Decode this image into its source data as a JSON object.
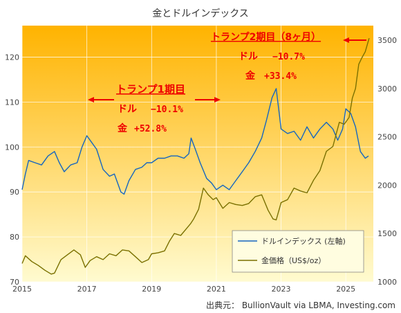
{
  "chart_data": {
    "type": "line",
    "title": "金とドルインデックス",
    "source": "出典元： BullionVault via LBMA, Investing.com",
    "xlim": [
      2015,
      2025.85
    ],
    "x_ticks": [
      "2015",
      "2017",
      "2019",
      "2021",
      "2023",
      "2025"
    ],
    "y_left": {
      "lim": [
        70,
        127
      ],
      "ticks": [
        "70",
        "80",
        "90",
        "100",
        "110",
        "120"
      ]
    },
    "y_right": {
      "lim": [
        1000,
        3650
      ],
      "ticks": [
        "1000",
        "1500",
        "2000",
        "2500",
        "3000",
        "3500"
      ]
    },
    "colors": {
      "dollar": "#1565c0",
      "gold": "#7a7000",
      "annotation": "#ee0000",
      "bg_top": "#ffb300",
      "bg_bottom": "#fffbd0"
    },
    "series": [
      {
        "name": "ドルインデックス (左軸)",
        "axis": "left",
        "x": [
          2015.0,
          2015.1,
          2015.2,
          2015.4,
          2015.6,
          2015.8,
          2016.0,
          2016.15,
          2016.3,
          2016.5,
          2016.7,
          2016.85,
          2017.0,
          2017.15,
          2017.3,
          2017.5,
          2017.7,
          2017.85,
          2018.05,
          2018.15,
          2018.3,
          2018.5,
          2018.7,
          2018.85,
          2019.0,
          2019.2,
          2019.4,
          2019.6,
          2019.8,
          2020.0,
          2020.15,
          2020.22,
          2020.35,
          2020.5,
          2020.7,
          2020.85,
          2021.0,
          2021.2,
          2021.4,
          2021.6,
          2021.8,
          2022.0,
          2022.2,
          2022.4,
          2022.55,
          2022.72,
          2022.85,
          2023.0,
          2023.2,
          2023.4,
          2023.6,
          2023.8,
          2024.0,
          2024.2,
          2024.4,
          2024.6,
          2024.75,
          2024.9,
          2025.0,
          2025.15,
          2025.3,
          2025.45,
          2025.6,
          2025.7
        ],
        "values": [
          90.5,
          94,
          97,
          96.5,
          96,
          98,
          99,
          96.5,
          94.5,
          96,
          96.5,
          100,
          102.5,
          101,
          99.5,
          95,
          93.5,
          94,
          90,
          89.5,
          92.5,
          95,
          95.5,
          96.5,
          96.5,
          97.5,
          97.5,
          98,
          98,
          97.5,
          98.5,
          102,
          99.5,
          96.5,
          93,
          92,
          90.5,
          91.5,
          90.5,
          92.5,
          94.5,
          96.5,
          99,
          102,
          106,
          111,
          113,
          104,
          103,
          103.5,
          101.5,
          104.5,
          102,
          104,
          105.5,
          104,
          101.5,
          104,
          108.5,
          107.5,
          104.5,
          99,
          97.5,
          98
        ]
      },
      {
        "name": "金価格（US$/oz）",
        "axis": "right",
        "x": [
          2015.0,
          2015.1,
          2015.3,
          2015.5,
          2015.7,
          2015.9,
          2016.0,
          2016.2,
          2016.4,
          2016.6,
          2016.8,
          2016.95,
          2017.1,
          2017.3,
          2017.5,
          2017.7,
          2017.9,
          2018.1,
          2018.3,
          2018.5,
          2018.7,
          2018.9,
          2019.0,
          2019.2,
          2019.4,
          2019.55,
          2019.7,
          2019.9,
          2020.1,
          2020.2,
          2020.3,
          2020.45,
          2020.6,
          2020.75,
          2020.9,
          2021.0,
          2021.2,
          2021.4,
          2021.6,
          2021.8,
          2022.0,
          2022.2,
          2022.4,
          2022.6,
          2022.75,
          2022.85,
          2023.0,
          2023.2,
          2023.4,
          2023.6,
          2023.8,
          2024.0,
          2024.2,
          2024.4,
          2024.6,
          2024.8,
          2024.95,
          2025.1,
          2025.2,
          2025.3,
          2025.4,
          2025.5,
          2025.6,
          2025.72
        ],
        "values": [
          1190,
          1270,
          1210,
          1170,
          1120,
          1080,
          1090,
          1230,
          1280,
          1330,
          1280,
          1150,
          1220,
          1260,
          1230,
          1290,
          1270,
          1330,
          1320,
          1260,
          1200,
          1230,
          1290,
          1300,
          1320,
          1420,
          1500,
          1480,
          1560,
          1600,
          1650,
          1750,
          1970,
          1900,
          1850,
          1870,
          1760,
          1820,
          1800,
          1790,
          1810,
          1880,
          1900,
          1740,
          1650,
          1640,
          1820,
          1850,
          1970,
          1940,
          1920,
          2050,
          2150,
          2350,
          2400,
          2650,
          2630,
          2700,
          2900,
          3000,
          3250,
          3320,
          3380,
          3520
        ]
      }
    ],
    "annotations": [
      {
        "title": "トランプ1期目",
        "line1_label": "ドル",
        "line1_value": "−10.1%",
        "line2_label": "金",
        "line2_value": "+52.8%"
      },
      {
        "title": "トランプ2期目（8ヶ月）",
        "line1_label": "ドル",
        "line1_value": "−10.7%",
        "line2_label": "金",
        "line2_value": "+33.4%"
      }
    ],
    "grid": true,
    "legend_position": "bottom-right"
  }
}
